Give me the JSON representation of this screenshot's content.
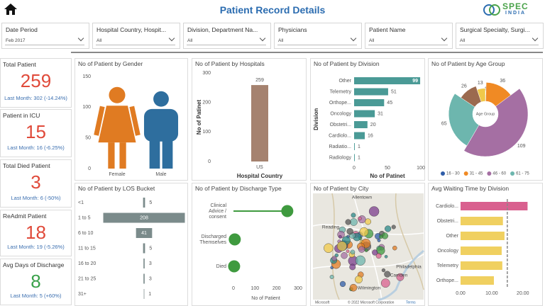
{
  "header": {
    "title": "Patient Record Details",
    "logo_top": "SPEC",
    "logo_bottom": "INDIA"
  },
  "filters": [
    {
      "label": "Date Period",
      "value": "Feb 2017"
    },
    {
      "label": "Hospital Country, Hospit...",
      "value": "All"
    },
    {
      "label": "Division, Department Na...",
      "value": "All"
    },
    {
      "label": "Physicians",
      "value": "All"
    },
    {
      "label": "Patient Name",
      "value": "All"
    },
    {
      "label": "Surgical Specialty, Surgi...",
      "value": "All"
    }
  ],
  "kpis": [
    {
      "title": "Total Patient",
      "value": 259,
      "comparison": "Last Month: 302 (-14.24%)",
      "color": "#e04a3a"
    },
    {
      "title": "Patient in ICU",
      "value": 15,
      "comparison": "Last Month: 16 (-6.25%)",
      "color": "#e04a3a"
    },
    {
      "title": "Total Died Patient",
      "value": 3,
      "comparison": "Last Month: 6 (-50%)",
      "color": "#e04a3a"
    },
    {
      "title": "ReAdmit Patient",
      "value": 18,
      "comparison": "Last Month: 19 (-5.26%)",
      "color": "#e04a3a"
    },
    {
      "title": "Avg Days of Discharge",
      "value": 8,
      "comparison": "Last Month: 5 (+60%)",
      "color": "#3aa14a"
    }
  ],
  "chart_data": [
    {
      "type": "pictogram",
      "title": "No of Patient by Gender",
      "categories": [
        "Female",
        "Male"
      ],
      "values": [
        133,
        126
      ],
      "colors": [
        "#e07b22",
        "#2e6e9e"
      ],
      "ylim": [
        0,
        150
      ],
      "yticks": [
        0,
        50,
        100,
        150
      ]
    },
    {
      "type": "bar",
      "title": "No of Patient by Hospitals",
      "categories": [
        "US"
      ],
      "values": [
        259
      ],
      "color": "#a5826f",
      "ylim": [
        0,
        300
      ],
      "yticks": [
        0,
        100,
        200,
        300
      ],
      "x_label": "Hospital Country",
      "y_label": "No of Patinet",
      "data_labels": true
    },
    {
      "type": "hbar",
      "title": "No of Patient by Division",
      "categories": [
        "Other",
        "Telemetry",
        "Orthope...",
        "Oncology",
        "Obstetri...",
        "Cardiolo...",
        "Radiatio...",
        "Radiology"
      ],
      "values": [
        99,
        51,
        45,
        31,
        20,
        16,
        1,
        1
      ],
      "color": "#4a9a96",
      "xlim": [
        0,
        100
      ],
      "xticks": [
        0,
        50,
        100
      ],
      "x_label": "No of Patinet",
      "y_label": "Division",
      "data_labels": true
    },
    {
      "type": "rose",
      "title": "No of Patient by Age Group",
      "center_label": "Age Group",
      "categories": [
        "16 - 30",
        "31 - 45",
        "46 - 60",
        "61 - 75",
        null,
        null
      ],
      "values": [
        1,
        36,
        109,
        65,
        26,
        13
      ],
      "colors": [
        "#2f5da8",
        "#f08a24",
        "#a56fa3",
        "#6db6ae",
        "#9b6a4f",
        "#f0c94a"
      ]
    },
    {
      "type": "funnel",
      "title": "No of Patient by LOS Bucket",
      "categories": [
        "<1",
        "1 to 5",
        "6 to 10",
        "11 to 15",
        "16 to 20",
        "21 to 25",
        "31+"
      ],
      "values": [
        5,
        208,
        41,
        5,
        3,
        3,
        1
      ],
      "color": "#7b8b8b"
    },
    {
      "type": "lollipop",
      "title": "No of Patient by Discharge Type",
      "categories": [
        "Clinical Advice / consent",
        "Discharged Themselves",
        "Died"
      ],
      "values": [
        250,
        6,
        3
      ],
      "color": "#3f9a3f",
      "xlim": [
        0,
        300
      ],
      "xticks": [
        0,
        100,
        200,
        300
      ],
      "x_label": "No of Patient"
    },
    {
      "type": "map",
      "title": "No of Patient by City",
      "places": [
        "Allentown",
        "Reading",
        "Philadelphia",
        "Camden",
        "Wilmington"
      ],
      "brand": "Microsoft",
      "attribution": "© 2022 Microsoft Corporation",
      "terms": "Terms"
    },
    {
      "type": "hbar",
      "title": "Avg Waiting Time by Division",
      "categories": [
        "Cardiolo...",
        "Obstetri...",
        "Other",
        "Oncology",
        "Telemetry",
        "Orthope..."
      ],
      "values": [
        21.5,
        13.6,
        14.1,
        13.2,
        13.4,
        10.7
      ],
      "colors": [
        "#d9608f",
        "#f0d060",
        "#f0d060",
        "#f0d060",
        "#f0d060",
        "#f0d060"
      ],
      "xlim": [
        0,
        23
      ],
      "xticks": [
        {
          "value": 0,
          "label": "0.00"
        },
        {
          "value": 10,
          "label": "10.00"
        },
        {
          "value": 20,
          "label": "20.00"
        }
      ],
      "reference_line": 15
    }
  ]
}
